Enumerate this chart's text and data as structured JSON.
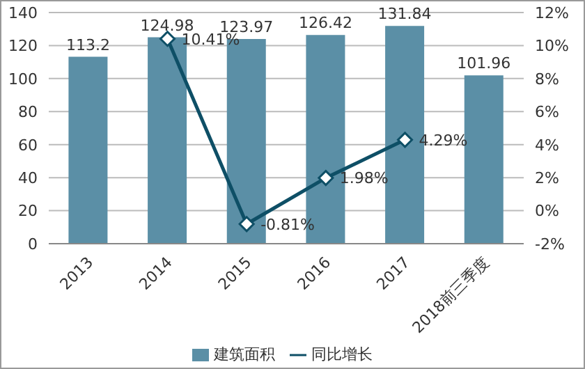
{
  "chart_data": {
    "type": "bar",
    "categories": [
      "2013",
      "2014",
      "2015",
      "2016",
      "2017",
      "2018前三季度"
    ],
    "series": [
      {
        "name": "建筑面积",
        "color": "#5b8fa6",
        "values": [
          113.2,
          124.98,
          123.97,
          126.42,
          131.84,
          101.96
        ],
        "value_labels": [
          "113.2",
          "124.98",
          "123.97",
          "126.42",
          "131.84",
          "101.96"
        ]
      },
      {
        "name": "同比增长",
        "type": "line",
        "axis": "y2",
        "color": "#0e4f66",
        "values": [
          null,
          10.41,
          -0.81,
          1.98,
          4.29,
          null
        ],
        "value_labels": [
          null,
          "10.41%",
          "-0.81%",
          "1.98%",
          "4.29%",
          null
        ]
      }
    ],
    "ylim": [
      0,
      140
    ],
    "yticks": [
      0,
      20,
      40,
      60,
      80,
      100,
      120,
      140
    ],
    "y2lim": [
      -2,
      12
    ],
    "y2ticks": [
      {
        "value": -2,
        "label": "-2%"
      },
      {
        "value": 0,
        "label": "0%"
      },
      {
        "value": 2,
        "label": "2%"
      },
      {
        "value": 4,
        "label": "4%"
      },
      {
        "value": 6,
        "label": "6%"
      },
      {
        "value": 8,
        "label": "8%"
      },
      {
        "value": 10,
        "label": "10%"
      },
      {
        "value": 12,
        "label": "12%"
      }
    ],
    "grid": "y",
    "legend": "bottom",
    "marker": "diamond",
    "line_style": "solid"
  }
}
